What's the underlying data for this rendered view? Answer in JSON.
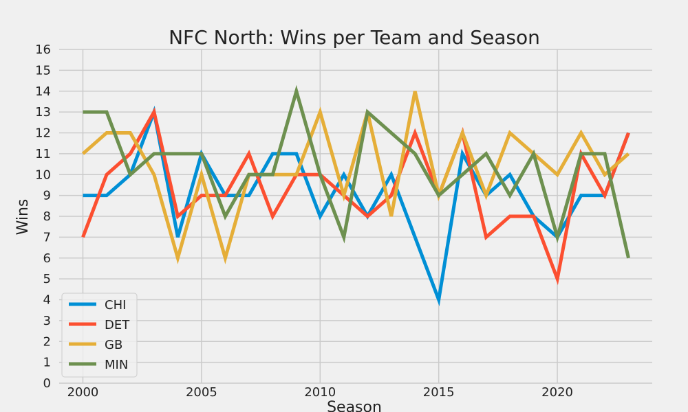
{
  "chart_data": {
    "type": "line",
    "title": "NFC North: Wins per Team and Season",
    "xlabel": "Season",
    "ylabel": "Wins",
    "x": [
      2000,
      2001,
      2002,
      2003,
      2004,
      2005,
      2006,
      2007,
      2008,
      2009,
      2010,
      2011,
      2012,
      2013,
      2014,
      2015,
      2016,
      2017,
      2018,
      2019,
      2020,
      2021,
      2022,
      2023
    ],
    "xlim": [
      1999,
      2024
    ],
    "ylim": [
      0,
      16
    ],
    "xticks": [
      2000,
      2005,
      2010,
      2015,
      2020
    ],
    "yticks": [
      0,
      1,
      2,
      3,
      4,
      5,
      6,
      7,
      8,
      9,
      10,
      11,
      12,
      13,
      14,
      15,
      16
    ],
    "grid": true,
    "legend_position": "lower-left",
    "series": [
      {
        "name": "CHI",
        "color": "#008fd5",
        "values": [
          9,
          9,
          10,
          13,
          7,
          11,
          9,
          9,
          11,
          11,
          8,
          10,
          8,
          10,
          7,
          4,
          11,
          9,
          10,
          8,
          7,
          9,
          9,
          12
        ]
      },
      {
        "name": "DET",
        "color": "#fc4f30",
        "values": [
          7,
          10,
          11,
          13,
          8,
          9,
          9,
          11,
          8,
          10,
          10,
          9,
          8,
          9,
          12,
          9,
          12,
          7,
          8,
          8,
          5,
          11,
          9,
          12
        ]
      },
      {
        "name": "GB",
        "color": "#e5ae38",
        "values": [
          11,
          12,
          12,
          10,
          6,
          10,
          6,
          10,
          10,
          10,
          13,
          9,
          13,
          8,
          14,
          9,
          12,
          9,
          12,
          11,
          10,
          12,
          10,
          11
        ]
      },
      {
        "name": "MIN",
        "color": "#6d904f",
        "values": [
          13,
          13,
          10,
          11,
          11,
          11,
          8,
          10,
          10,
          14,
          10,
          7,
          13,
          12,
          11,
          9,
          10,
          11,
          9,
          11,
          7,
          11,
          11,
          6
        ]
      }
    ]
  }
}
